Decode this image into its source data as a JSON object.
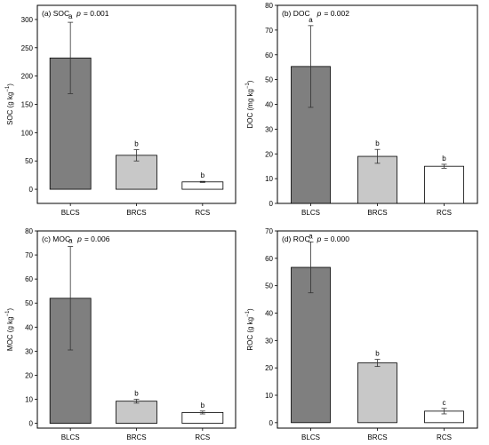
{
  "chart_data": [
    {
      "type": "bar",
      "panel_label": "(a) SOC",
      "p_label": "p",
      "p_value": "= 0.001",
      "ylabel_main": "SOC (g kg",
      "ylabel_sup": "−1",
      "ylabel_end": ")",
      "categories": [
        "BLCS",
        "BRCS",
        "RCS"
      ],
      "values": [
        232,
        60,
        13
      ],
      "errors": [
        63,
        10,
        1
      ],
      "letters": [
        "a",
        "b",
        "b"
      ],
      "ylim": [
        -25,
        325
      ],
      "yticks": [
        0,
        50,
        100,
        150,
        200,
        250,
        300
      ],
      "colors": [
        "#7f7f7f",
        "#c8c8c8",
        "#ffffff"
      ]
    },
    {
      "type": "bar",
      "panel_label": "(b) DOC",
      "p_label": "p",
      "p_value": "= 0.002",
      "ylabel_main": "DOC (mg kg",
      "ylabel_sup": "−1",
      "ylabel_end": ")",
      "categories": [
        "BLCS",
        "BRCS",
        "RCS"
      ],
      "values": [
        55.3,
        19,
        15
      ],
      "errors": [
        16.5,
        2.8,
        0.8
      ],
      "letters": [
        "a",
        "b",
        "b"
      ],
      "ylim": [
        0,
        80
      ],
      "yticks": [
        0,
        10,
        20,
        30,
        40,
        50,
        60,
        70,
        80
      ],
      "colors": [
        "#7f7f7f",
        "#c8c8c8",
        "#ffffff"
      ]
    },
    {
      "type": "bar",
      "panel_label": "(c) MOC",
      "p_label": "p",
      "p_value": "= 0.006",
      "ylabel_main": "MOC (g kg",
      "ylabel_sup": "−1",
      "ylabel_end": ")",
      "categories": [
        "BLCS",
        "BRCS",
        "RCS"
      ],
      "values": [
        52,
        9.2,
        4.5
      ],
      "errors": [
        21.5,
        0.8,
        0.6
      ],
      "letters": [
        "a",
        "b",
        "b"
      ],
      "ylim": [
        -2,
        80
      ],
      "yticks": [
        0,
        10,
        20,
        30,
        40,
        50,
        60,
        70,
        80
      ],
      "colors": [
        "#7f7f7f",
        "#c8c8c8",
        "#ffffff"
      ]
    },
    {
      "type": "bar",
      "panel_label": "(d) ROC",
      "p_label": "p",
      "p_value": "= 0.000",
      "ylabel_main": "ROC (g kg",
      "ylabel_sup": "−1",
      "ylabel_end": ")",
      "categories": [
        "BLCS",
        "BRCS",
        "RCS"
      ],
      "values": [
        56.7,
        21.8,
        4.2
      ],
      "errors": [
        9.3,
        1.3,
        1.0
      ],
      "letters": [
        "a",
        "b",
        "c"
      ],
      "ylim": [
        -2,
        70
      ],
      "yticks": [
        0,
        10,
        20,
        30,
        40,
        50,
        60,
        70
      ],
      "colors": [
        "#7f7f7f",
        "#c8c8c8",
        "#ffffff"
      ]
    }
  ]
}
